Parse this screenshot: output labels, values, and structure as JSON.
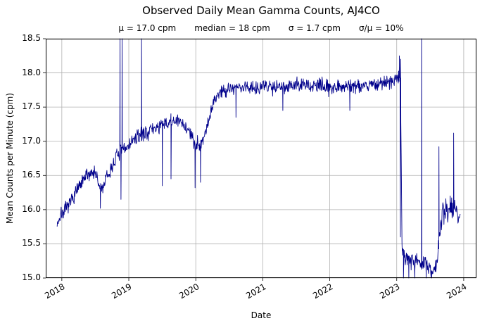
{
  "chart_data": {
    "type": "line",
    "title": "Observed Daily Mean Gamma Counts, AJ4CO",
    "stats": [
      "μ = 17.0 cpm",
      "median = 18 cpm",
      "σ = 1.7 cpm",
      "σ/μ = 10%"
    ],
    "xlabel": "Date",
    "ylabel": "Mean Counts per Minute (cpm)",
    "x_domain": [
      2017.76,
      2024.19
    ],
    "y_domain": [
      15.0,
      18.5
    ],
    "x_ticks": [
      2018,
      2019,
      2020,
      2021,
      2022,
      2023,
      2024
    ],
    "x_tick_labels": [
      "2018",
      "2019",
      "2020",
      "2021",
      "2022",
      "2023",
      "2024"
    ],
    "y_ticks": [
      15.0,
      15.5,
      16.0,
      16.5,
      17.0,
      17.5,
      18.0,
      18.5
    ],
    "y_tick_labels": [
      "15.0",
      "15.5",
      "16.0",
      "16.5",
      "17.0",
      "17.5",
      "18.0",
      "18.5"
    ],
    "grid": true,
    "legend": "none",
    "line_color": "#00008b",
    "grid_color": "#b0b0b0",
    "x_start": 2017.93,
    "x_end": 2023.95,
    "sample_step_years": 0.0055,
    "series_keypoints": [
      [
        2017.93,
        15.8
      ],
      [
        2018.0,
        15.95
      ],
      [
        2018.06,
        16.0
      ],
      [
        2018.13,
        16.1
      ],
      [
        2018.2,
        16.25
      ],
      [
        2018.28,
        16.35
      ],
      [
        2018.37,
        16.5
      ],
      [
        2018.45,
        16.55
      ],
      [
        2018.5,
        16.55
      ],
      [
        2018.55,
        16.35
      ],
      [
        2018.6,
        16.3
      ],
      [
        2018.66,
        16.45
      ],
      [
        2018.72,
        16.55
      ],
      [
        2018.8,
        16.75
      ],
      [
        2018.88,
        16.85
      ],
      [
        2018.96,
        16.9
      ],
      [
        2019.05,
        17.0
      ],
      [
        2019.12,
        17.05
      ],
      [
        2019.2,
        17.1
      ],
      [
        2019.3,
        17.15
      ],
      [
        2019.4,
        17.2
      ],
      [
        2019.55,
        17.25
      ],
      [
        2019.7,
        17.3
      ],
      [
        2019.82,
        17.25
      ],
      [
        2019.9,
        17.15
      ],
      [
        2019.97,
        16.98
      ],
      [
        2020.05,
        16.95
      ],
      [
        2020.12,
        17.05
      ],
      [
        2020.2,
        17.35
      ],
      [
        2020.28,
        17.6
      ],
      [
        2020.35,
        17.72
      ],
      [
        2020.5,
        17.78
      ],
      [
        2021.0,
        17.8
      ],
      [
        2021.5,
        17.82
      ],
      [
        2022.0,
        17.8
      ],
      [
        2022.5,
        17.82
      ],
      [
        2022.85,
        17.85
      ],
      [
        2023.0,
        17.9
      ],
      [
        2023.05,
        18.0
      ],
      [
        2023.065,
        17.0
      ],
      [
        2023.08,
        15.35
      ],
      [
        2023.15,
        15.3
      ],
      [
        2023.25,
        15.28
      ],
      [
        2023.35,
        15.22
      ],
      [
        2023.45,
        15.18
      ],
      [
        2023.52,
        15.12
      ],
      [
        2023.58,
        15.15
      ],
      [
        2023.63,
        15.5
      ],
      [
        2023.68,
        15.95
      ],
      [
        2023.75,
        16.0
      ],
      [
        2023.82,
        16.05
      ],
      [
        2023.88,
        16.0
      ],
      [
        2023.94,
        15.9
      ]
    ],
    "spikes": [
      [
        2018.575,
        16.02
      ],
      [
        2018.87,
        18.6
      ],
      [
        2018.883,
        16.15
      ],
      [
        2018.9,
        18.75
      ],
      [
        2019.19,
        18.55
      ],
      [
        2019.5,
        16.35
      ],
      [
        2019.63,
        16.45
      ],
      [
        2019.99,
        16.32
      ],
      [
        2020.07,
        16.4
      ],
      [
        2020.6,
        17.35
      ],
      [
        2021.3,
        17.45
      ],
      [
        2022.3,
        17.45
      ],
      [
        2023.04,
        18.25
      ],
      [
        2023.055,
        15.6
      ],
      [
        2023.06,
        18.2
      ],
      [
        2023.1,
        14.8
      ],
      [
        2023.18,
        14.75
      ],
      [
        2023.27,
        14.85
      ],
      [
        2023.37,
        18.5
      ],
      [
        2023.44,
        14.7
      ],
      [
        2023.52,
        14.6
      ],
      [
        2023.63,
        16.92
      ],
      [
        2023.85,
        17.12
      ]
    ],
    "noise": {
      "default_amp": 0.16,
      "regions": [
        {
          "from": 2023.07,
          "to": 2023.6,
          "amp": 0.18
        },
        {
          "from": 2023.6,
          "to": 2023.96,
          "amp": 0.25
        }
      ]
    }
  }
}
